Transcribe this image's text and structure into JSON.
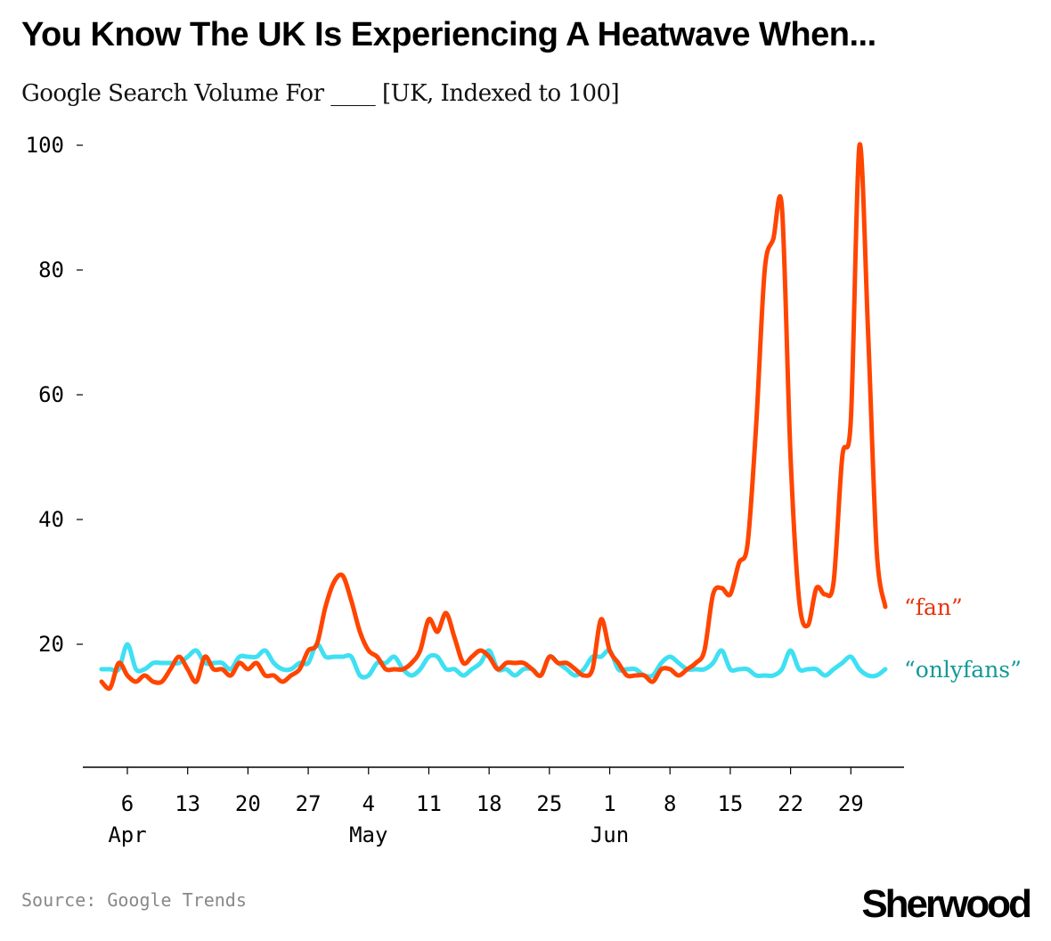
{
  "title": "You Know The UK Is Experiencing A Heatwave When...",
  "subtitle": "Google Search Volume For ____ [UK, Indexed to 100]",
  "source": "Source: Google Trends",
  "logo": "Sherwood",
  "chart_data": {
    "type": "line",
    "title": "You Know The UK Is Experiencing A Heatwave When...",
    "ylim": [
      0,
      100
    ],
    "yticks": [
      20,
      40,
      60,
      80,
      100
    ],
    "xticks": [
      {
        "date": "Apr 6",
        "label": "6",
        "month": "Apr"
      },
      {
        "date": "Apr 13",
        "label": "13",
        "month": ""
      },
      {
        "date": "Apr 20",
        "label": "20",
        "month": ""
      },
      {
        "date": "Apr 27",
        "label": "27",
        "month": ""
      },
      {
        "date": "May 4",
        "label": "4",
        "month": "May"
      },
      {
        "date": "May 11",
        "label": "11",
        "month": ""
      },
      {
        "date": "May 18",
        "label": "18",
        "month": ""
      },
      {
        "date": "May 25",
        "label": "25",
        "month": ""
      },
      {
        "date": "Jun 1",
        "label": "1",
        "month": "Jun"
      },
      {
        "date": "Jun 8",
        "label": "8",
        "month": ""
      },
      {
        "date": "Jun 15",
        "label": "15",
        "month": ""
      },
      {
        "date": "Jun 22",
        "label": "22",
        "month": ""
      },
      {
        "date": "Jun 29",
        "label": "29",
        "month": ""
      }
    ],
    "grid": false,
    "legend": "inline-right",
    "x": [
      "Apr 3",
      "Apr 4",
      "Apr 5",
      "Apr 6",
      "Apr 7",
      "Apr 8",
      "Apr 9",
      "Apr 10",
      "Apr 11",
      "Apr 12",
      "Apr 13",
      "Apr 14",
      "Apr 15",
      "Apr 16",
      "Apr 17",
      "Apr 18",
      "Apr 19",
      "Apr 20",
      "Apr 21",
      "Apr 22",
      "Apr 23",
      "Apr 24",
      "Apr 25",
      "Apr 26",
      "Apr 27",
      "Apr 28",
      "Apr 29",
      "Apr 30",
      "May 1",
      "May 2",
      "May 3",
      "May 4",
      "May 5",
      "May 6",
      "May 7",
      "May 8",
      "May 9",
      "May 10",
      "May 11",
      "May 12",
      "May 13",
      "May 14",
      "May 15",
      "May 16",
      "May 17",
      "May 18",
      "May 19",
      "May 20",
      "May 21",
      "May 22",
      "May 23",
      "May 24",
      "May 25",
      "May 26",
      "May 27",
      "May 28",
      "May 29",
      "May 30",
      "May 31",
      "Jun 1",
      "Jun 2",
      "Jun 3",
      "Jun 4",
      "Jun 5",
      "Jun 6",
      "Jun 7",
      "Jun 8",
      "Jun 9",
      "Jun 10",
      "Jun 11",
      "Jun 12",
      "Jun 13",
      "Jun 14",
      "Jun 15",
      "Jun 16",
      "Jun 17",
      "Jun 18",
      "Jun 19",
      "Jun 20",
      "Jun 21",
      "Jun 22",
      "Jun 23",
      "Jun 24",
      "Jun 25",
      "Jun 26",
      "Jun 27",
      "Jun 28",
      "Jun 29",
      "Jun 30",
      "Jul 1",
      "Jul 2",
      "Jul 3"
    ],
    "series": [
      {
        "name": "“onlyfans”",
        "color": "#3EE0F2",
        "label_color": "#12999A",
        "values": [
          16,
          16,
          16,
          20,
          16,
          16,
          17,
          17,
          17,
          17,
          18,
          19,
          17,
          17,
          17,
          16,
          18,
          18,
          18,
          19,
          17,
          16,
          16,
          17,
          17,
          20,
          18,
          18,
          18,
          18,
          15,
          15,
          17,
          17,
          18,
          16,
          15,
          16,
          18,
          18,
          16,
          16,
          15,
          16,
          17,
          19,
          16,
          16,
          15,
          16,
          16,
          15,
          18,
          17,
          16,
          15,
          16,
          18,
          18,
          19,
          16,
          16,
          16,
          15,
          15,
          17,
          18,
          17,
          16,
          16,
          16,
          17,
          19,
          16,
          16,
          16,
          15,
          15,
          15,
          16,
          19,
          16,
          16,
          16,
          15,
          16,
          17,
          18,
          16,
          15,
          15,
          16
        ]
      },
      {
        "name": "“fan”",
        "color": "#FF4500",
        "label_color": "#E8340A",
        "values": [
          14,
          13,
          17,
          15,
          14,
          15,
          14,
          14,
          16,
          18,
          16,
          14,
          18,
          16,
          16,
          15,
          17,
          16,
          17,
          15,
          15,
          14,
          15,
          16,
          19,
          20,
          26,
          30,
          31,
          27,
          22,
          19,
          18,
          16,
          16,
          16,
          17,
          19,
          24,
          22,
          25,
          21,
          17,
          18,
          19,
          18,
          16,
          17,
          17,
          17,
          16,
          15,
          18,
          17,
          17,
          16,
          15,
          16,
          24,
          19,
          17,
          15,
          15,
          15,
          14,
          16,
          16,
          15,
          16,
          17,
          19,
          28,
          29,
          28,
          33,
          36,
          55,
          80,
          85,
          90,
          50,
          27,
          23,
          29,
          28,
          30,
          50,
          56,
          100,
          70,
          35,
          26
        ]
      }
    ]
  }
}
